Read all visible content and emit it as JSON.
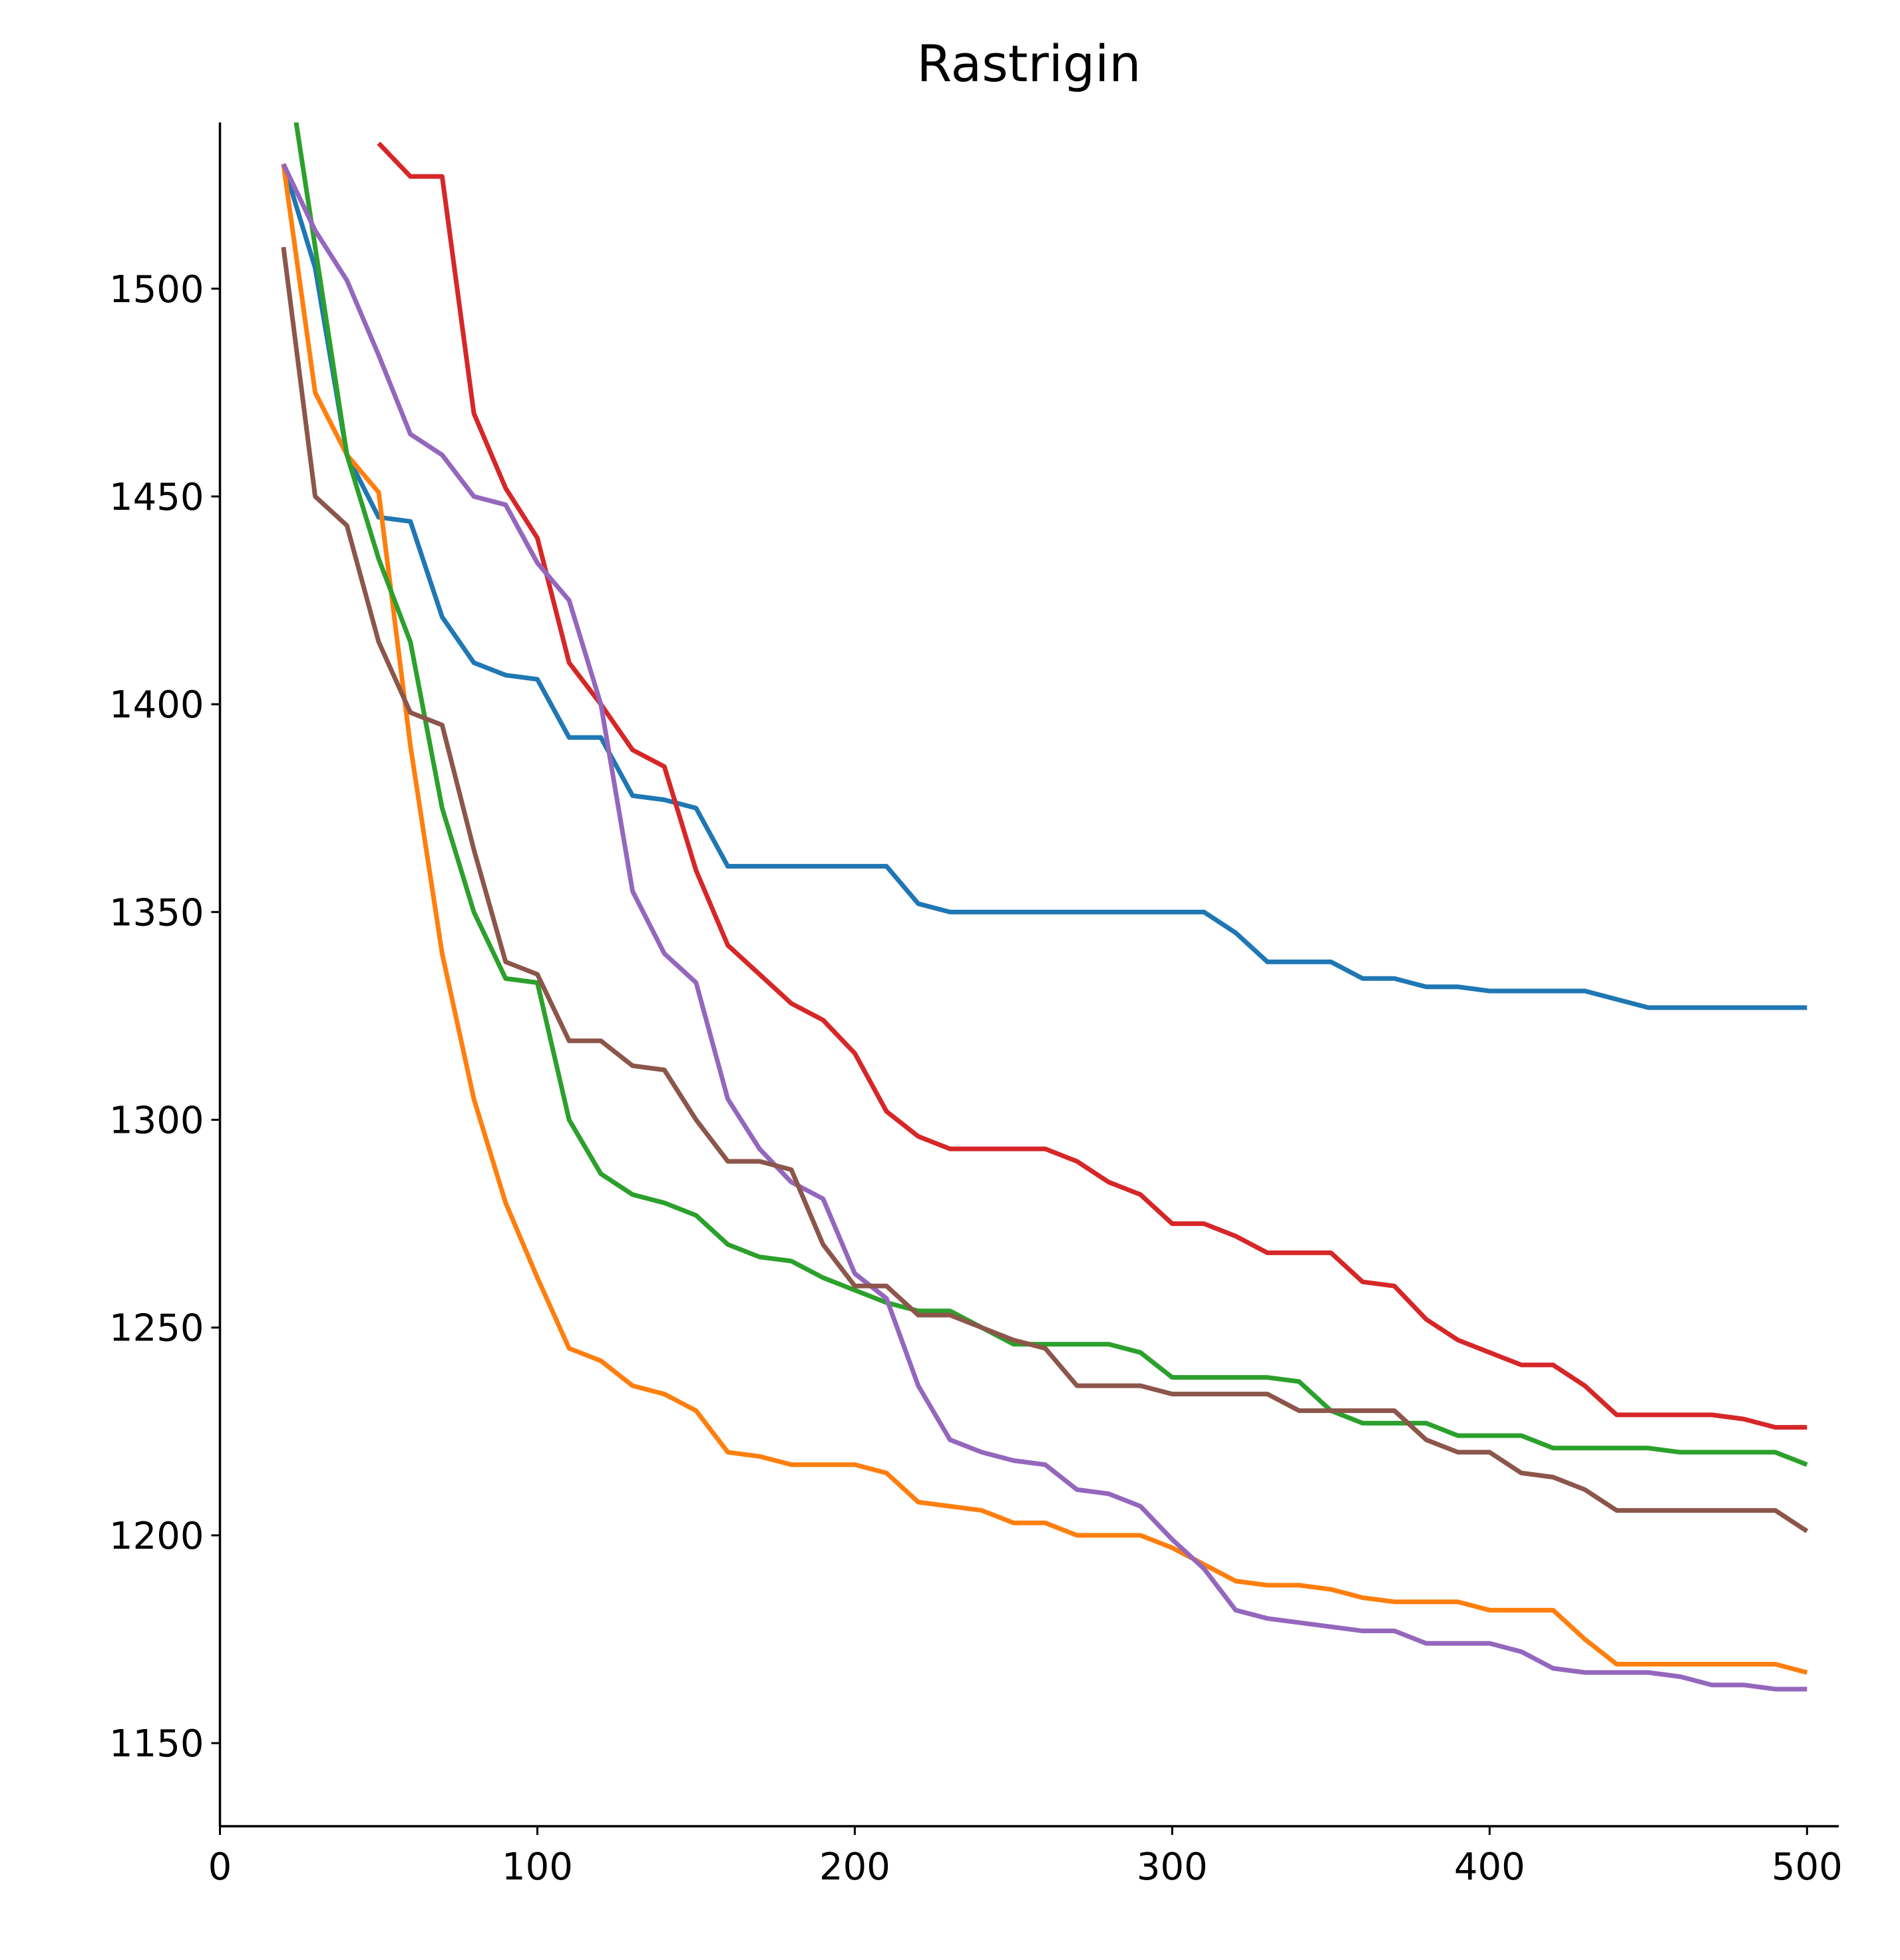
{
  "chart_data": {
    "type": "line",
    "title": "Rastrigin",
    "x": [
      20,
      30,
      40,
      50,
      60,
      70,
      80,
      90,
      100,
      110,
      120,
      130,
      140,
      150,
      160,
      170,
      180,
      190,
      200,
      210,
      220,
      230,
      240,
      250,
      260,
      270,
      280,
      290,
      300,
      310,
      320,
      330,
      340,
      350,
      360,
      370,
      380,
      390,
      400,
      410,
      420,
      430,
      440,
      450,
      460,
      470,
      480,
      490,
      500
    ],
    "series": [
      {
        "color": "#1f77b4",
        "values": [
          1530,
          1505,
          1460,
          1445,
          1444,
          1421,
          1410,
          1407,
          1406,
          1392,
          1392,
          1378,
          1377,
          1375,
          1361,
          1361,
          1361,
          1361,
          1361,
          1361,
          1352,
          1350,
          1350,
          1350,
          1350,
          1350,
          1350,
          1350,
          1350,
          1350,
          1345,
          1338,
          1338,
          1338,
          1334,
          1334,
          1332,
          1332,
          1331,
          1331,
          1331,
          1331,
          1329,
          1327,
          1327,
          1327,
          1327,
          1327,
          1327
        ]
      },
      {
        "color": "#ff7f0e",
        "values": [
          1530,
          1475,
          1460,
          1451,
          1390,
          1340,
          1305,
          1280,
          1262,
          1245,
          1242,
          1236,
          1234,
          1230,
          1220,
          1219,
          1217,
          1217,
          1217,
          1215,
          1208,
          1207,
          1206,
          1203,
          1203,
          1200,
          1200,
          1200,
          1197,
          1193,
          1189,
          1188,
          1188,
          1187,
          1185,
          1184,
          1184,
          1184,
          1182,
          1182,
          1182,
          1175,
          1169,
          1169,
          1169,
          1169,
          1169,
          1169,
          1167
        ]
      },
      {
        "color": "#2ca02c",
        "values": [
          1560,
          1510,
          1460,
          1435,
          1415,
          1375,
          1350,
          1334,
          1333,
          1300,
          1287,
          1282,
          1280,
          1277,
          1270,
          1267,
          1266,
          1262,
          1259,
          1256,
          1254,
          1254,
          1250,
          1246,
          1246,
          1246,
          1246,
          1244,
          1238,
          1238,
          1238,
          1238,
          1237,
          1230,
          1227,
          1227,
          1227,
          1224,
          1224,
          1224,
          1221,
          1221,
          1221,
          1221,
          1220,
          1220,
          1220,
          1220,
          1217
        ]
      },
      {
        "color": "#d62728",
        "values": [
          null,
          null,
          null,
          1535,
          1527,
          1527,
          1470,
          1452,
          1440,
          1410,
          1400,
          1389,
          1385,
          1360,
          1342,
          1335,
          1328,
          1324,
          1316,
          1302,
          1296,
          1293,
          1293,
          1293,
          1293,
          1290,
          1285,
          1282,
          1275,
          1275,
          1272,
          1268,
          1268,
          1268,
          1261,
          1260,
          1252,
          1247,
          1244,
          1241,
          1241,
          1236,
          1229,
          1229,
          1229,
          1229,
          1228,
          1226,
          1226
        ]
      },
      {
        "color": "#9467bd",
        "values": [
          1530,
          1514,
          1502,
          1484,
          1465,
          1460,
          1450,
          1448,
          1434,
          1425,
          1400,
          1355,
          1340,
          1333,
          1305,
          1293,
          1285,
          1281,
          1263,
          1257,
          1236,
          1223,
          1220,
          1218,
          1217,
          1211,
          1210,
          1207,
          1199,
          1192,
          1182,
          1180,
          1179,
          1178,
          1177,
          1177,
          1174,
          1174,
          1174,
          1172,
          1168,
          1167,
          1167,
          1167,
          1166,
          1164,
          1164,
          1163,
          1163
        ]
      },
      {
        "color": "#8c564b",
        "values": [
          1510,
          1450,
          1443,
          1415,
          1398,
          1395,
          1365,
          1338,
          1335,
          1319,
          1319,
          1313,
          1312,
          1300,
          1290,
          1290,
          1288,
          1270,
          1260,
          1260,
          1253,
          1253,
          1250,
          1247,
          1245,
          1236,
          1236,
          1236,
          1234,
          1234,
          1234,
          1234,
          1230,
          1230,
          1230,
          1230,
          1223,
          1220,
          1220,
          1215,
          1214,
          1211,
          1206,
          1206,
          1206,
          1206,
          1206,
          1206,
          1201
        ]
      }
    ],
    "xlim": [
      0,
      510
    ],
    "xticks": [
      0,
      100,
      200,
      300,
      400,
      500
    ],
    "ylim": [
      1130,
      1540
    ],
    "yticks": [
      1150,
      1200,
      1250,
      1300,
      1350,
      1400,
      1450,
      1500
    ]
  }
}
